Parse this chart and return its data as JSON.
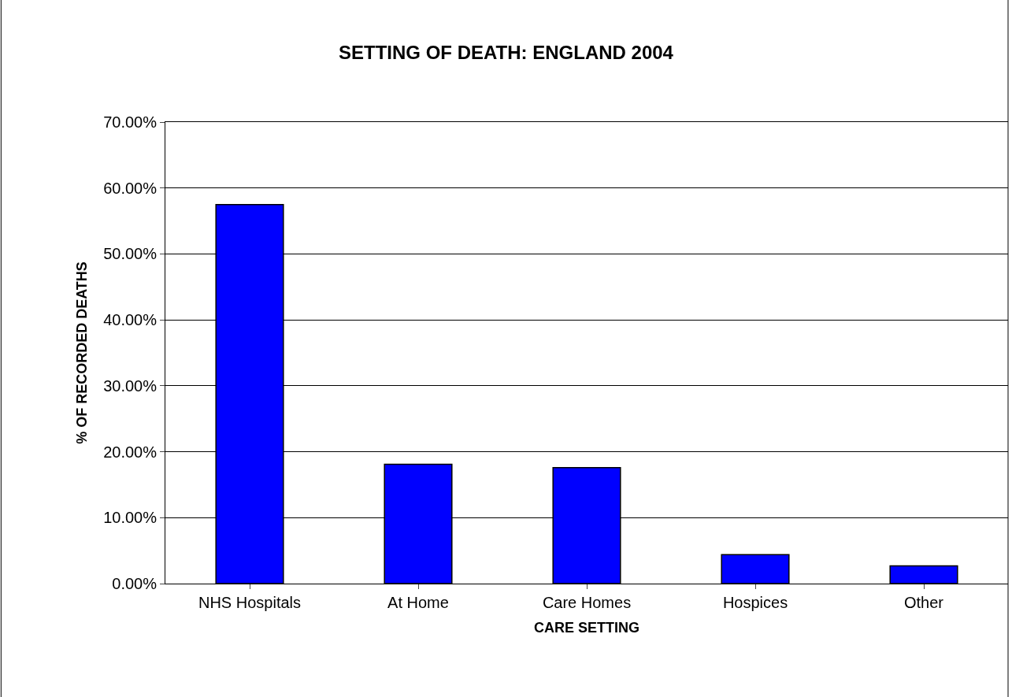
{
  "chart_data": {
    "type": "bar",
    "title": "SETTING OF DEATH: ENGLAND 2004",
    "xlabel": "CARE SETTING",
    "ylabel": "% OF RECORDED DEATHS",
    "categories": [
      "NHS Hospitals",
      "At Home",
      "Care Homes",
      "Hospices",
      "Other"
    ],
    "values": [
      57.5,
      18.1,
      17.6,
      4.4,
      2.7
    ],
    "color": "#0000ff",
    "ylim": [
      0,
      70
    ],
    "yticks": [
      {
        "value": 0,
        "label": "0.00%"
      },
      {
        "value": 10,
        "label": "10.00%"
      },
      {
        "value": 20,
        "label": "20.00%"
      },
      {
        "value": 30,
        "label": "30.00%"
      },
      {
        "value": 40,
        "label": "40.00%"
      },
      {
        "value": 50,
        "label": "50.00%"
      },
      {
        "value": 60,
        "label": "60.00%"
      },
      {
        "value": 70,
        "label": "70.00%"
      }
    ],
    "grid": "y"
  }
}
